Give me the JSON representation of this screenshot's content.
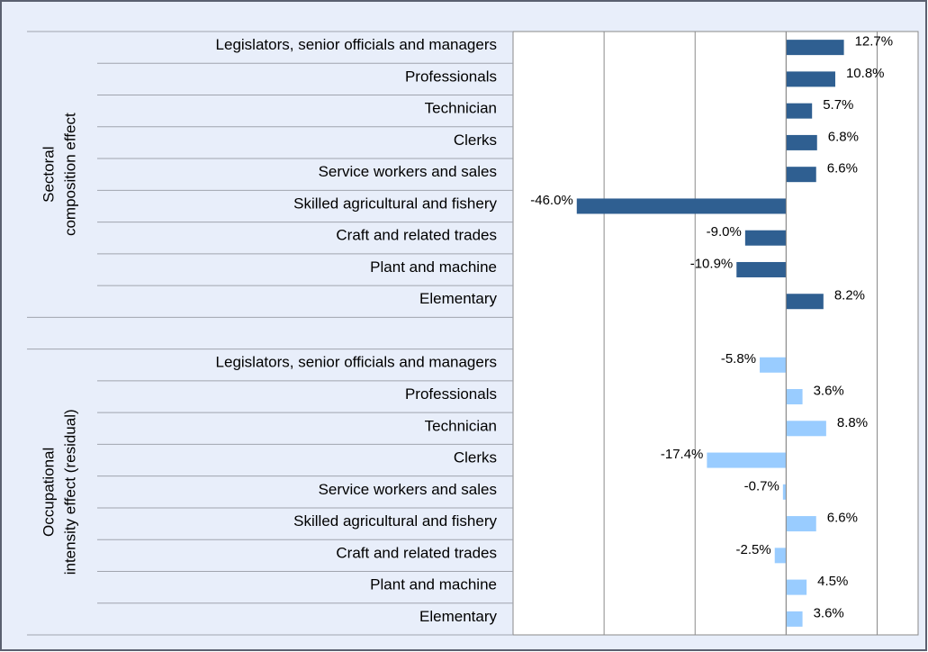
{
  "chart_data": {
    "type": "bar",
    "orientation": "horizontal",
    "categories": [
      "Legislators, senior officials and managers",
      "Professionals",
      "Technician",
      "Clerks",
      "Service workers and sales",
      "Skilled agricultural and fishery",
      "Craft and related trades",
      "Plant and machine",
      "Elementary"
    ],
    "series": [
      {
        "name": [
          "Sectoral",
          "composition effect"
        ],
        "color": "#2f5f91",
        "values": [
          12.7,
          10.8,
          5.7,
          6.8,
          6.6,
          -46.0,
          -9.0,
          -10.9,
          8.2
        ],
        "value_labels": [
          "12.7%",
          "10.8%",
          "5.7%",
          "6.8%",
          "6.6%",
          "-46.0%",
          "-9.0%",
          "-10.9%",
          "8.2%"
        ]
      },
      {
        "name": [
          "Occupational",
          "intensity effect (residual)"
        ],
        "color": "#99ccff",
        "values": [
          -5.8,
          3.6,
          8.8,
          -17.4,
          -0.7,
          6.6,
          -2.5,
          4.5,
          3.6
        ],
        "value_labels": [
          "-5.8%",
          "3.6%",
          "8.8%",
          "-17.4%",
          "-0.7%",
          "6.6%",
          "-2.5%",
          "4.5%",
          "3.6%"
        ]
      }
    ],
    "xlim": [
      -60,
      29
    ],
    "xticks": [
      -60,
      -40,
      -20,
      0,
      20
    ],
    "grid": true
  }
}
